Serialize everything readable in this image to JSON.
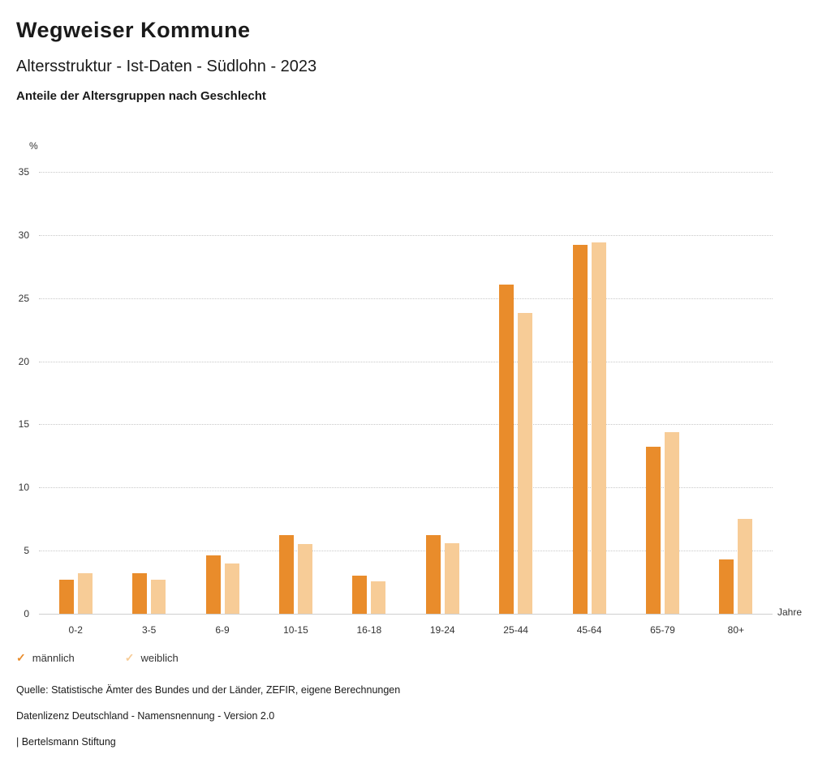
{
  "header": {
    "title": "Wegweiser Kommune",
    "subtitle": "Altersstruktur - Ist-Daten - Südlohn - 2023",
    "chart_heading": "Anteile der Altersgruppen nach Geschlecht"
  },
  "chart_data": {
    "type": "bar",
    "title": "Anteile der Altersgruppen nach Geschlecht",
    "unit_label": "%",
    "xlabel": "Jahre",
    "ylim": [
      0,
      35
    ],
    "yticks": [
      0,
      5,
      10,
      15,
      20,
      25,
      30,
      35
    ],
    "grid": "dotted-horizontal",
    "legend_position": "bottom-left",
    "categories": [
      "0-2",
      "3-5",
      "6-9",
      "10-15",
      "16-18",
      "19-24",
      "25-44",
      "45-64",
      "65-79",
      "80+"
    ],
    "series": [
      {
        "name": "männlich",
        "color": "#e98c2b",
        "values": [
          2.7,
          3.2,
          4.6,
          6.2,
          3.0,
          6.2,
          26.1,
          29.2,
          13.2,
          4.3
        ]
      },
      {
        "name": "weiblich",
        "color": "#f7cc97",
        "values": [
          3.2,
          2.7,
          4.0,
          5.5,
          2.6,
          5.6,
          23.8,
          29.4,
          14.4,
          7.5
        ]
      }
    ]
  },
  "legend": {
    "check_glyph": "✓"
  },
  "footer": {
    "source": "Quelle: Statistische Ämter des Bundes und der Länder, ZEFIR, eigene Berechnungen",
    "license": "Datenlizenz Deutschland - Namensnennung - Version 2.0",
    "attribution": "| Bertelsmann Stiftung"
  }
}
